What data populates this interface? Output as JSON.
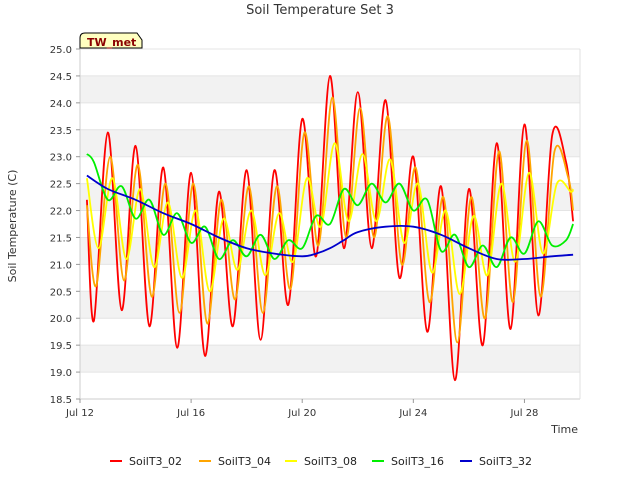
{
  "chart_data": {
    "type": "line",
    "title": "Soil Temperature Set 3",
    "xlabel": "Time",
    "ylabel": "Soil Temperature (C)",
    "badge": "TW_met",
    "x_domain": [
      "2024-07-12",
      "2024-07-30"
    ],
    "x_ticks": [
      {
        "x": "2024-07-12",
        "label": "Jul 12"
      },
      {
        "x": "2024-07-16",
        "label": "Jul 16"
      },
      {
        "x": "2024-07-20",
        "label": "Jul 20"
      },
      {
        "x": "2024-07-24",
        "label": "Jul 24"
      },
      {
        "x": "2024-07-28",
        "label": "Jul 28"
      }
    ],
    "ylim": [
      18.5,
      25.0
    ],
    "y_ticks": [
      "18.5",
      "19.0",
      "19.5",
      "20.0",
      "20.5",
      "21.0",
      "21.5",
      "22.0",
      "22.5",
      "23.0",
      "23.5",
      "24.0",
      "24.5",
      "25.0"
    ],
    "grid": "horizontal bands",
    "legend_position": "bottom",
    "series": [
      {
        "name": "SoilT3_02",
        "color": "#ff0000",
        "x": [
          "2024-07-12 06:00",
          "2024-07-12 12:00",
          "2024-07-13 00:00",
          "2024-07-13 12:00",
          "2024-07-14 00:00",
          "2024-07-14 12:00",
          "2024-07-15 00:00",
          "2024-07-15 12:00",
          "2024-07-16 00:00",
          "2024-07-16 12:00",
          "2024-07-17 00:00",
          "2024-07-17 12:00",
          "2024-07-18 00:00",
          "2024-07-18 12:00",
          "2024-07-19 00:00",
          "2024-07-19 12:00",
          "2024-07-20 00:00",
          "2024-07-20 12:00",
          "2024-07-21 00:00",
          "2024-07-21 12:00",
          "2024-07-22 00:00",
          "2024-07-22 12:00",
          "2024-07-23 00:00",
          "2024-07-23 12:00",
          "2024-07-24 00:00",
          "2024-07-24 12:00",
          "2024-07-25 00:00",
          "2024-07-25 12:00",
          "2024-07-26 00:00",
          "2024-07-26 12:00",
          "2024-07-27 00:00",
          "2024-07-27 12:00",
          "2024-07-28 00:00",
          "2024-07-28 12:00",
          "2024-07-29 00:00",
          "2024-07-29 12:00",
          "2024-07-29 18:00"
        ],
        "y": [
          22.2,
          19.95,
          23.45,
          20.15,
          23.2,
          19.85,
          22.8,
          19.45,
          22.7,
          19.3,
          22.35,
          19.85,
          22.75,
          19.6,
          22.75,
          20.25,
          23.7,
          21.15,
          24.5,
          21.3,
          24.2,
          21.3,
          24.05,
          20.75,
          23.0,
          19.75,
          22.45,
          18.85,
          22.4,
          19.5,
          23.25,
          19.8,
          23.6,
          20.05,
          23.4,
          22.9,
          21.8
        ]
      },
      {
        "name": "SoilT3_04",
        "color": "#ffa500",
        "x": [
          "2024-07-12 06:00",
          "2024-07-12 14:00",
          "2024-07-13 02:00",
          "2024-07-13 14:00",
          "2024-07-14 02:00",
          "2024-07-14 14:00",
          "2024-07-15 02:00",
          "2024-07-15 14:00",
          "2024-07-16 02:00",
          "2024-07-16 14:00",
          "2024-07-17 02:00",
          "2024-07-17 14:00",
          "2024-07-18 02:00",
          "2024-07-18 14:00",
          "2024-07-19 02:00",
          "2024-07-19 14:00",
          "2024-07-20 02:00",
          "2024-07-20 14:00",
          "2024-07-21 02:00",
          "2024-07-21 14:00",
          "2024-07-22 02:00",
          "2024-07-22 14:00",
          "2024-07-23 02:00",
          "2024-07-23 14:00",
          "2024-07-24 02:00",
          "2024-07-24 14:00",
          "2024-07-25 02:00",
          "2024-07-25 14:00",
          "2024-07-26 02:00",
          "2024-07-26 14:00",
          "2024-07-27 02:00",
          "2024-07-27 14:00",
          "2024-07-28 02:00",
          "2024-07-28 14:00",
          "2024-07-29 02:00",
          "2024-07-29 14:00",
          "2024-07-29 18:00"
        ],
        "y": [
          22.1,
          20.6,
          23.0,
          20.7,
          22.85,
          20.4,
          22.5,
          20.1,
          22.5,
          19.9,
          22.2,
          20.35,
          22.45,
          20.1,
          22.45,
          20.55,
          23.45,
          21.35,
          24.1,
          21.5,
          23.9,
          21.5,
          23.75,
          21.0,
          22.8,
          20.3,
          22.25,
          19.55,
          22.25,
          20.0,
          23.1,
          20.3,
          23.3,
          20.4,
          23.1,
          22.6,
          22.0
        ]
      },
      {
        "name": "SoilT3_08",
        "color": "#ffff00",
        "x": [
          "2024-07-12 06:00",
          "2024-07-12 16:00",
          "2024-07-13 04:00",
          "2024-07-13 16:00",
          "2024-07-14 04:00",
          "2024-07-14 16:00",
          "2024-07-15 04:00",
          "2024-07-15 16:00",
          "2024-07-16 04:00",
          "2024-07-16 16:00",
          "2024-07-17 04:00",
          "2024-07-17 16:00",
          "2024-07-18 04:00",
          "2024-07-18 16:00",
          "2024-07-19 04:00",
          "2024-07-19 16:00",
          "2024-07-20 04:00",
          "2024-07-20 16:00",
          "2024-07-21 04:00",
          "2024-07-21 16:00",
          "2024-07-22 04:00",
          "2024-07-22 16:00",
          "2024-07-23 04:00",
          "2024-07-23 16:00",
          "2024-07-24 04:00",
          "2024-07-24 16:00",
          "2024-07-25 04:00",
          "2024-07-25 16:00",
          "2024-07-26 04:00",
          "2024-07-26 16:00",
          "2024-07-27 04:00",
          "2024-07-27 16:00",
          "2024-07-28 04:00",
          "2024-07-28 16:00",
          "2024-07-29 04:00",
          "2024-07-29 16:00",
          "2024-07-29 18:00"
        ],
        "y": [
          22.6,
          21.3,
          22.6,
          21.1,
          22.4,
          20.95,
          22.15,
          20.75,
          22.0,
          20.5,
          21.85,
          20.9,
          22.0,
          20.8,
          21.95,
          21.05,
          22.6,
          21.7,
          23.25,
          21.8,
          23.05,
          21.8,
          22.95,
          21.4,
          22.5,
          20.85,
          22.0,
          20.45,
          21.9,
          20.8,
          22.5,
          21.05,
          22.7,
          21.2,
          22.5,
          22.35,
          22.4
        ]
      },
      {
        "name": "SoilT3_16",
        "color": "#00ee00",
        "x": [
          "2024-07-12 06:00",
          "2024-07-12 12:00",
          "2024-07-13 00:00",
          "2024-07-13 12:00",
          "2024-07-14 00:00",
          "2024-07-14 12:00",
          "2024-07-15 00:00",
          "2024-07-15 12:00",
          "2024-07-16 00:00",
          "2024-07-16 12:00",
          "2024-07-17 00:00",
          "2024-07-17 12:00",
          "2024-07-18 00:00",
          "2024-07-18 12:00",
          "2024-07-19 00:00",
          "2024-07-19 12:00",
          "2024-07-20 00:00",
          "2024-07-20 12:00",
          "2024-07-21 00:00",
          "2024-07-21 12:00",
          "2024-07-22 00:00",
          "2024-07-22 12:00",
          "2024-07-23 00:00",
          "2024-07-23 12:00",
          "2024-07-24 00:00",
          "2024-07-24 12:00",
          "2024-07-25 00:00",
          "2024-07-25 12:00",
          "2024-07-26 00:00",
          "2024-07-26 12:00",
          "2024-07-27 00:00",
          "2024-07-27 12:00",
          "2024-07-28 00:00",
          "2024-07-28 12:00",
          "2024-07-29 00:00",
          "2024-07-29 12:00",
          "2024-07-29 18:00"
        ],
        "y": [
          23.05,
          22.9,
          22.2,
          22.45,
          21.85,
          22.2,
          21.55,
          21.95,
          21.4,
          21.7,
          21.1,
          21.45,
          21.15,
          21.55,
          21.1,
          21.45,
          21.3,
          21.9,
          21.75,
          22.4,
          22.1,
          22.5,
          22.15,
          22.5,
          22.0,
          22.2,
          21.25,
          21.55,
          20.95,
          21.35,
          20.95,
          21.5,
          21.2,
          21.8,
          21.35,
          21.45,
          21.75
        ]
      },
      {
        "name": "SoilT3_32",
        "color": "#0000cc",
        "x": [
          "2024-07-12 06:00",
          "2024-07-13 00:00",
          "2024-07-14 00:00",
          "2024-07-15 00:00",
          "2024-07-16 00:00",
          "2024-07-17 00:00",
          "2024-07-18 00:00",
          "2024-07-19 00:00",
          "2024-07-20 00:00",
          "2024-07-20 12:00",
          "2024-07-21 00:00",
          "2024-07-21 12:00",
          "2024-07-22 00:00",
          "2024-07-23 00:00",
          "2024-07-24 00:00",
          "2024-07-25 00:00",
          "2024-07-26 00:00",
          "2024-07-27 00:00",
          "2024-07-28 00:00",
          "2024-07-29 00:00",
          "2024-07-29 18:00"
        ],
        "y": [
          22.65,
          22.4,
          22.2,
          21.95,
          21.75,
          21.5,
          21.3,
          21.2,
          21.15,
          21.2,
          21.3,
          21.45,
          21.6,
          21.7,
          21.7,
          21.55,
          21.3,
          21.1,
          21.1,
          21.15,
          21.18
        ]
      }
    ]
  }
}
